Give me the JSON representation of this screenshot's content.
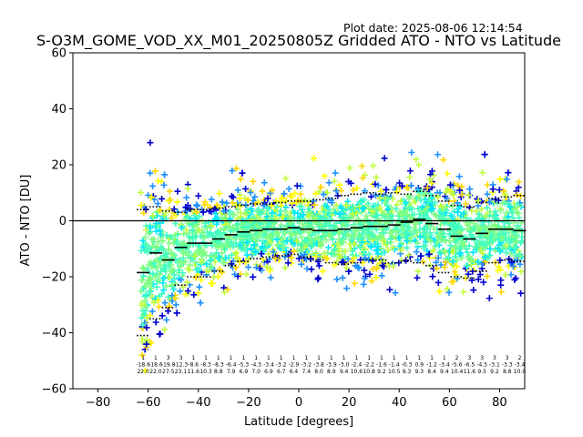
{
  "chart_data": {
    "type": "scatter",
    "title": "S-O3M_GOME_VOD_XX_M01_20250805Z Gridded ATO - NTO vs Latitude",
    "plot_date": "Plot date: 2025-08-06 12:14:54",
    "xlabel": "Latitude [degrees]",
    "ylabel": "ATO - NTO [DU]",
    "xlim": [
      -90,
      90
    ],
    "ylim": [
      -60,
      60
    ],
    "xticks": [
      -80,
      -60,
      -40,
      -20,
      0,
      20,
      40,
      60,
      80
    ],
    "yticks": [
      -60,
      -40,
      -20,
      0,
      20,
      40,
      60
    ],
    "xtick_labels": [
      "−80",
      "−60",
      "−40",
      "−20",
      "0",
      "20",
      "40",
      "60",
      "80"
    ],
    "ytick_labels": [
      "−60",
      "−40",
      "−20",
      "0",
      "20",
      "40",
      "60"
    ],
    "grid": false,
    "zero_line": 0,
    "marker": "plus",
    "point_colors": [
      "#0000cd",
      "#1e90ff",
      "#00e5ff",
      "#40ffc0",
      "#80ff80",
      "#c0ff40",
      "#ffff00",
      "#ffd700"
    ],
    "point_cloud": {
      "lat_min": -63,
      "lat_max": 89,
      "density_note": "dense point cloud of gridded differences"
    },
    "bins": [
      {
        "lat": -62,
        "mean": -18.5,
        "p_upper": 4.0,
        "p_lower": -41.0
      },
      {
        "lat": -57,
        "mean": -11.5,
        "p_upper": 5.0,
        "p_lower": -35.0
      },
      {
        "lat": -52,
        "mean": -14.0,
        "p_upper": 3.5,
        "p_lower": -31.0
      },
      {
        "lat": -47,
        "mean": -9.5,
        "p_upper": 3.0,
        "p_lower": -23.0
      },
      {
        "lat": -42,
        "mean": -8.0,
        "p_upper": 4.0,
        "p_lower": -20.0
      },
      {
        "lat": -37,
        "mean": -8.0,
        "p_upper": 4.0,
        "p_lower": -20.0
      },
      {
        "lat": -32,
        "mean": -6.5,
        "p_upper": 4.5,
        "p_lower": -18.0
      },
      {
        "lat": -27,
        "mean": -5.0,
        "p_upper": 5.0,
        "p_lower": -16.0
      },
      {
        "lat": -22,
        "mean": -4.0,
        "p_upper": 5.5,
        "p_lower": -14.5
      },
      {
        "lat": -17,
        "mean": -3.5,
        "p_upper": 6.0,
        "p_lower": -13.5
      },
      {
        "lat": -12,
        "mean": -3.0,
        "p_upper": 6.0,
        "p_lower": -13.0
      },
      {
        "lat": -7,
        "mean": -3.0,
        "p_upper": 6.5,
        "p_lower": -12.5
      },
      {
        "lat": -2,
        "mean": -2.5,
        "p_upper": 7.0,
        "p_lower": -12.0
      },
      {
        "lat": 3,
        "mean": -3.0,
        "p_upper": 7.0,
        "p_lower": -13.0
      },
      {
        "lat": 8,
        "mean": -3.5,
        "p_upper": 7.5,
        "p_lower": -14.0
      },
      {
        "lat": 13,
        "mean": -3.5,
        "p_upper": 8.0,
        "p_lower": -15.0
      },
      {
        "lat": 18,
        "mean": -3.0,
        "p_upper": 9.0,
        "p_lower": -15.5
      },
      {
        "lat": 23,
        "mean": -2.5,
        "p_upper": 9.5,
        "p_lower": -15.0
      },
      {
        "lat": 28,
        "mean": -2.0,
        "p_upper": 10.0,
        "p_lower": -14.0
      },
      {
        "lat": 33,
        "mean": -2.0,
        "p_upper": 9.5,
        "p_lower": -14.0
      },
      {
        "lat": 38,
        "mean": -1.5,
        "p_upper": 10.0,
        "p_lower": -15.0
      },
      {
        "lat": 43,
        "mean": -0.5,
        "p_upper": 9.5,
        "p_lower": -14.5
      },
      {
        "lat": 48,
        "mean": 0.5,
        "p_upper": 10.5,
        "p_lower": -15.0
      },
      {
        "lat": 53,
        "mean": -1.0,
        "p_upper": 9.0,
        "p_lower": -16.0
      },
      {
        "lat": 58,
        "mean": -3.0,
        "p_upper": 7.0,
        "p_lower": -18.5
      },
      {
        "lat": 63,
        "mean": -5.5,
        "p_upper": 5.5,
        "p_lower": -20.0
      },
      {
        "lat": 68,
        "mean": -6.5,
        "p_upper": 5.0,
        "p_lower": -20.5
      },
      {
        "lat": 73,
        "mean": -4.5,
        "p_upper": 6.5,
        "p_lower": -18.0
      },
      {
        "lat": 78,
        "mean": -3.0,
        "p_upper": 8.0,
        "p_lower": -15.0
      },
      {
        "lat": 83,
        "mean": -3.0,
        "p_upper": 8.5,
        "p_lower": -14.0
      },
      {
        "lat": 88,
        "mean": -3.5,
        "p_upper": 9.0,
        "p_lower": -14.5
      }
    ],
    "bin_stat_labels": [
      {
        "lat": -62,
        "lines": [
          "1",
          "-18.6",
          "22.0"
        ]
      },
      {
        "lat": -57,
        "lines": [
          "1",
          "-18.6",
          "22.0"
        ]
      },
      {
        "lat": -52,
        "lines": [
          "3",
          "-19.8",
          "27.5"
        ]
      },
      {
        "lat": -47,
        "lines": [
          "3",
          "-12.3",
          "23.1"
        ]
      },
      {
        "lat": -42,
        "lines": [
          "1",
          "-8.6",
          "11.6"
        ]
      },
      {
        "lat": -37,
        "lines": [
          "1",
          "-8.3",
          "10.3"
        ]
      },
      {
        "lat": -32,
        "lines": [
          "1",
          "-8.3",
          "8.8"
        ]
      },
      {
        "lat": -27,
        "lines": [
          "1",
          "-6.4",
          "7.9"
        ]
      },
      {
        "lat": -22,
        "lines": [
          "1",
          "-5.3",
          "6.9"
        ]
      },
      {
        "lat": -17,
        "lines": [
          "1",
          "-4.3",
          "7.0"
        ]
      },
      {
        "lat": -12,
        "lines": [
          "1",
          "-3.4",
          "6.9"
        ]
      },
      {
        "lat": -7,
        "lines": [
          "1",
          "-3.2",
          "6.7"
        ]
      },
      {
        "lat": -2,
        "lines": [
          "1",
          "-2.9",
          "6.4"
        ]
      },
      {
        "lat": 3,
        "lines": [
          "1",
          "-3.2",
          "7.4"
        ]
      },
      {
        "lat": 8,
        "lines": [
          "1",
          "-3.8",
          "8.0"
        ]
      },
      {
        "lat": 13,
        "lines": [
          "1",
          "-3.9",
          "8.9"
        ]
      },
      {
        "lat": 18,
        "lines": [
          "1",
          "-3.0",
          "9.4"
        ]
      },
      {
        "lat": 23,
        "lines": [
          "1",
          "-2.4",
          "10.6"
        ]
      },
      {
        "lat": 28,
        "lines": [
          "1",
          "-2.2",
          "10.8"
        ]
      },
      {
        "lat": 33,
        "lines": [
          "1",
          "-1.6",
          "9.2"
        ]
      },
      {
        "lat": 38,
        "lines": [
          "1",
          "-1.4",
          "10.5"
        ]
      },
      {
        "lat": 43,
        "lines": [
          "1",
          "-0.3",
          "9.3"
        ]
      },
      {
        "lat": 48,
        "lines": [
          "1",
          "0.9",
          "9.3"
        ]
      },
      {
        "lat": 53,
        "lines": [
          "1",
          "-1.2",
          "8.4"
        ]
      },
      {
        "lat": 58,
        "lines": [
          "1",
          "-3.4",
          "9.4"
        ]
      },
      {
        "lat": 63,
        "lines": [
          "2",
          "-5.6",
          "10.4"
        ]
      },
      {
        "lat": 68,
        "lines": [
          "3",
          "-6.5",
          "11.6"
        ]
      },
      {
        "lat": 73,
        "lines": [
          "3",
          "-4.5",
          "9.5"
        ]
      },
      {
        "lat": 78,
        "lines": [
          "3",
          "-3.1",
          "9.2"
        ]
      },
      {
        "lat": 83,
        "lines": [
          "3",
          "-3.3",
          "8.8"
        ]
      },
      {
        "lat": 88,
        "lines": [
          "2",
          "-3.4",
          "10.0"
        ]
      }
    ]
  }
}
